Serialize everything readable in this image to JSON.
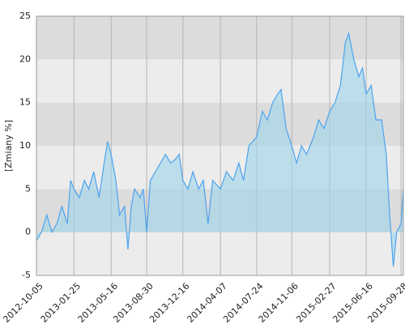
{
  "chart_data": {
    "type": "area",
    "y_label": "[Zmiany %]",
    "x": [
      "2012-10-05",
      "2012-10-20",
      "2012-11-05",
      "2012-11-20",
      "2012-12-05",
      "2012-12-20",
      "2013-01-05",
      "2013-01-15",
      "2013-01-25",
      "2013-02-10",
      "2013-02-25",
      "2013-03-10",
      "2013-03-25",
      "2013-04-10",
      "2013-04-25",
      "2013-05-05",
      "2013-05-16",
      "2013-05-30",
      "2013-06-10",
      "2013-06-25",
      "2013-07-05",
      "2013-07-15",
      "2013-07-25",
      "2013-08-10",
      "2013-08-20",
      "2013-08-30",
      "2013-09-10",
      "2013-09-25",
      "2013-10-10",
      "2013-10-25",
      "2013-11-10",
      "2013-11-25",
      "2013-12-05",
      "2013-12-16",
      "2013-12-31",
      "2014-01-15",
      "2014-02-01",
      "2014-02-15",
      "2014-03-01",
      "2014-03-15",
      "2014-04-07",
      "2014-04-25",
      "2014-05-15",
      "2014-06-01",
      "2014-06-15",
      "2014-07-01",
      "2014-07-24",
      "2014-08-10",
      "2014-08-25",
      "2014-09-10",
      "2014-09-25",
      "2014-10-05",
      "2014-10-20",
      "2014-11-06",
      "2014-11-20",
      "2014-12-05",
      "2014-12-20",
      "2015-01-10",
      "2015-01-25",
      "2015-02-10",
      "2015-02-27",
      "2015-03-15",
      "2015-03-31",
      "2015-04-15",
      "2015-04-25",
      "2015-05-10",
      "2015-05-25",
      "2015-06-05",
      "2015-06-16",
      "2015-07-01",
      "2015-07-15",
      "2015-08-01",
      "2015-08-15",
      "2015-08-25",
      "2015-09-05",
      "2015-09-15",
      "2015-09-28",
      "2015-10-05"
    ],
    "values": [
      -1,
      0,
      2,
      0,
      1,
      3,
      1,
      6,
      5,
      4,
      6,
      5,
      7,
      4,
      8,
      10.5,
      9,
      6,
      2,
      3,
      -2,
      3,
      5,
      4,
      5,
      0,
      6,
      7,
      8,
      9,
      8,
      8.5,
      9,
      6,
      5,
      7,
      5,
      6,
      1,
      6,
      5,
      7,
      6,
      8,
      6,
      10,
      11,
      14,
      13,
      15,
      16,
      16.5,
      12,
      10,
      8,
      10,
      9,
      11,
      13,
      12,
      14,
      15,
      17,
      22,
      23,
      20,
      18,
      19,
      16,
      17,
      13,
      13,
      9,
      2,
      -4,
      0,
      1,
      5
    ],
    "color": "#4da3ee",
    "fill": "#9dd3ea",
    "xlim": [
      "2012-10-05",
      "2015-10-05"
    ],
    "xticks": [
      "2012-10-05",
      "2013-01-25",
      "2013-05-16",
      "2013-08-30",
      "2013-12-16",
      "2014-04-07",
      "2014-07-24",
      "2014-11-06",
      "2015-02-27",
      "2015-06-16",
      "2015-09-28"
    ],
    "ylim": [
      -5,
      25
    ],
    "yticks": [
      -5,
      0,
      5,
      10,
      15,
      20,
      25
    ],
    "grid": true
  }
}
